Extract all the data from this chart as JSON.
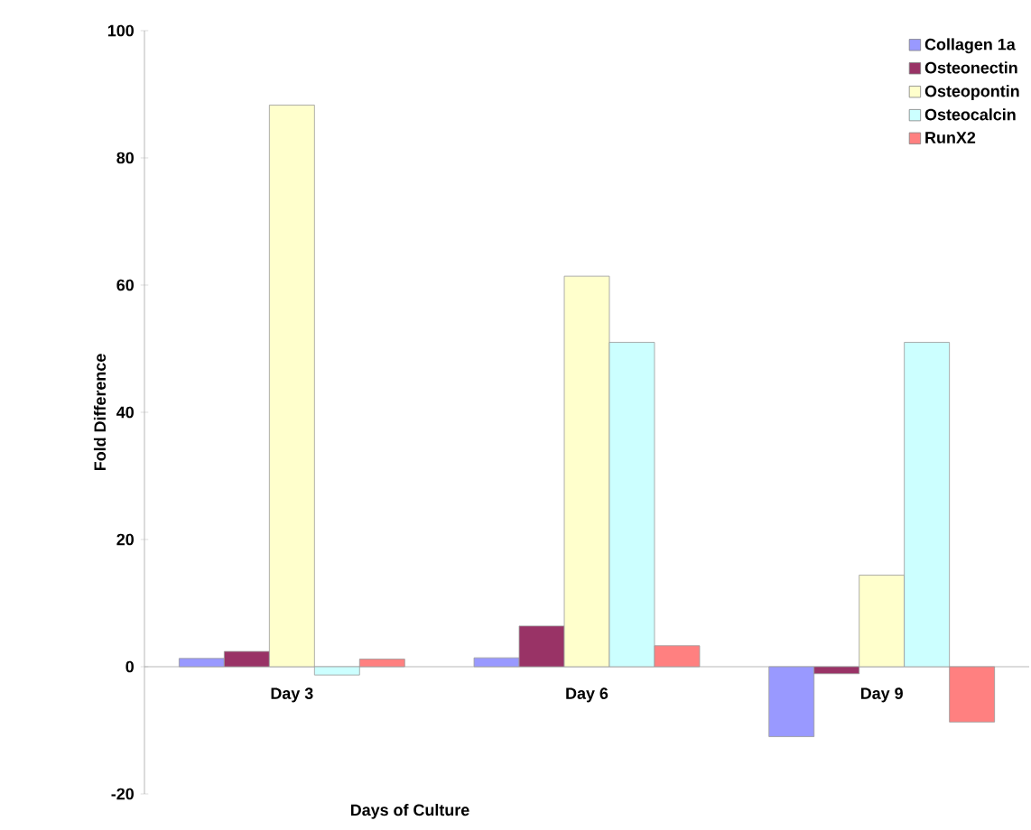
{
  "chart_data": {
    "type": "bar",
    "xlabel": "Days of Culture",
    "ylabel": "Fold Difference",
    "categories": [
      "Day 3",
      "Day 6",
      "Day 9"
    ],
    "series": [
      {
        "name": "Collagen 1a",
        "color": "#9999ff",
        "values": [
          1.3,
          1.4,
          -11
        ]
      },
      {
        "name": "Osteonectin",
        "color": "#993366",
        "values": [
          2.4,
          6.4,
          -1.1
        ]
      },
      {
        "name": "Osteopontin",
        "color": "#ffffcc",
        "values": [
          88.3,
          61.4,
          14.4
        ]
      },
      {
        "name": "Osteocalcin",
        "color": "#ccffff",
        "values": [
          -1.3,
          51,
          51
        ]
      },
      {
        "name": "RunX2",
        "color": "#ff8080",
        "values": [
          1.2,
          3.3,
          -8.7
        ]
      }
    ],
    "ylim": [
      -20,
      100
    ],
    "yticks": [
      -20,
      0,
      20,
      40,
      60,
      80,
      100
    ],
    "grid": false,
    "legend": "top right"
  }
}
